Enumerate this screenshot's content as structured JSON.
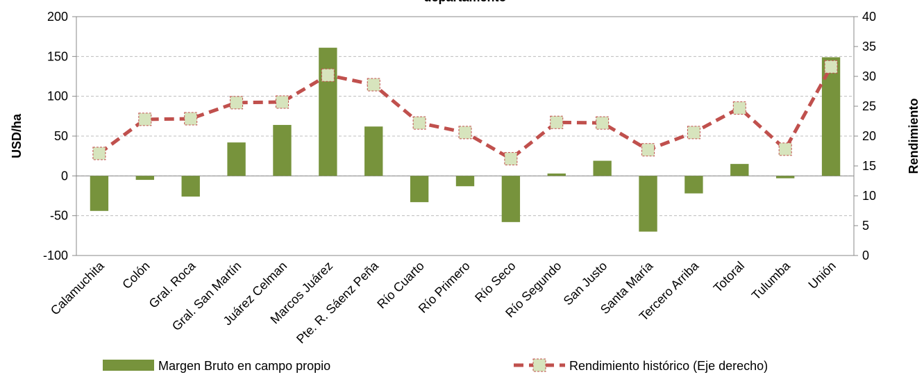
{
  "chart_data": {
    "type": "bar-line",
    "title": "departamento",
    "ylabel": "USD/ha",
    "y2label": "Rendimiento",
    "categories": [
      "Calamuchita",
      "Colón",
      "Gral. Roca",
      "Gral. San Martín",
      "Juárez Celman",
      "Marcos Juárez",
      "Pte. R. Sáenz Peña",
      "Río Cuarto",
      "Río Primero",
      "Río Seco",
      "Río Segundo",
      "San Justo",
      "Santa María",
      "Tercero Arriba",
      "Totoral",
      "Tulumba",
      "Unión"
    ],
    "series": [
      {
        "name": "Margen Bruto en campo propio",
        "type": "bar",
        "color": "#77933c",
        "values": [
          -44,
          -5,
          -26,
          42,
          64,
          161,
          62,
          -33,
          -13,
          -58,
          3,
          19,
          -70,
          -22,
          15,
          -3,
          149
        ]
      },
      {
        "name": "Rendimiento histórico (Eje derecho)",
        "type": "line",
        "axis": "y2",
        "color": "#c0504d",
        "marker_color": "#d7e4bd",
        "values": [
          17.1,
          22.8,
          22.9,
          25.6,
          25.7,
          30.2,
          28.6,
          22.2,
          20.6,
          16.2,
          22.3,
          22.2,
          17.7,
          20.6,
          24.7,
          17.8,
          31.6
        ]
      }
    ],
    "ylim": [
      -100,
      200
    ],
    "yticks": [
      -100,
      -50,
      0,
      50,
      100,
      150,
      200
    ],
    "y2lim": [
      0,
      40
    ],
    "y2ticks": [
      0,
      5,
      10,
      15,
      20,
      25,
      30,
      35,
      40
    ],
    "grid": true,
    "legend": "bottom"
  }
}
